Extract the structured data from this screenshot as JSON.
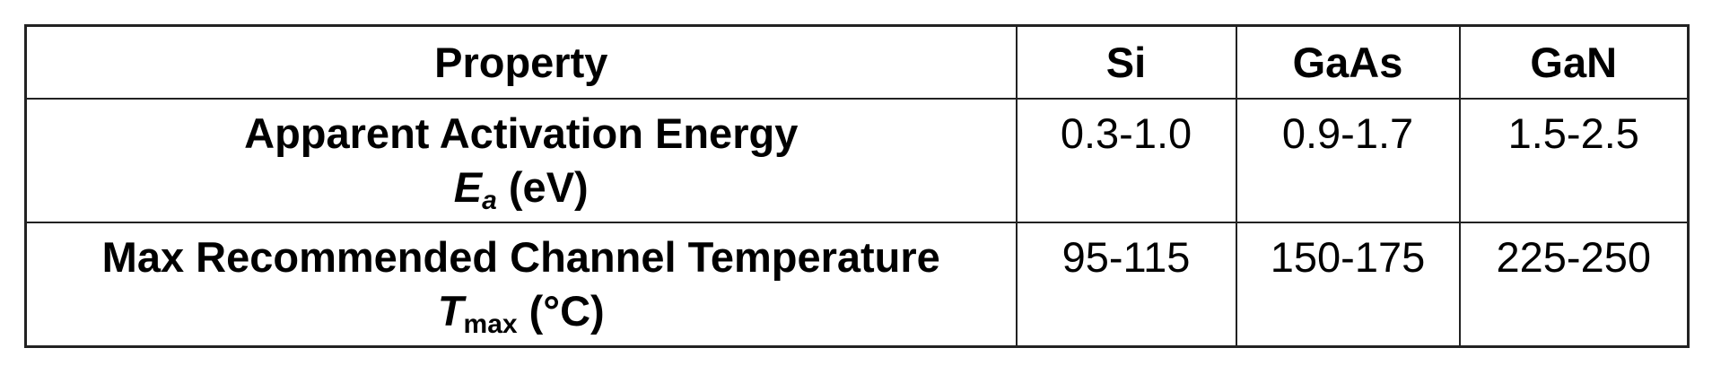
{
  "table": {
    "headers": [
      "Property",
      "Si",
      "GaAs",
      "GaN"
    ],
    "rows": [
      {
        "property": "Apparent Activation Energy",
        "symbol": "E",
        "subscript": "a",
        "unit": " (eV)",
        "values": [
          "0.3-1.0",
          "0.9-1.7",
          "1.5-2.5"
        ]
      },
      {
        "property": "Max Recommended Channel Temperature",
        "symbol": "T",
        "subscript": "max",
        "unit": " (°C)",
        "values": [
          "95-115",
          "150-175",
          "225-250"
        ]
      }
    ]
  }
}
